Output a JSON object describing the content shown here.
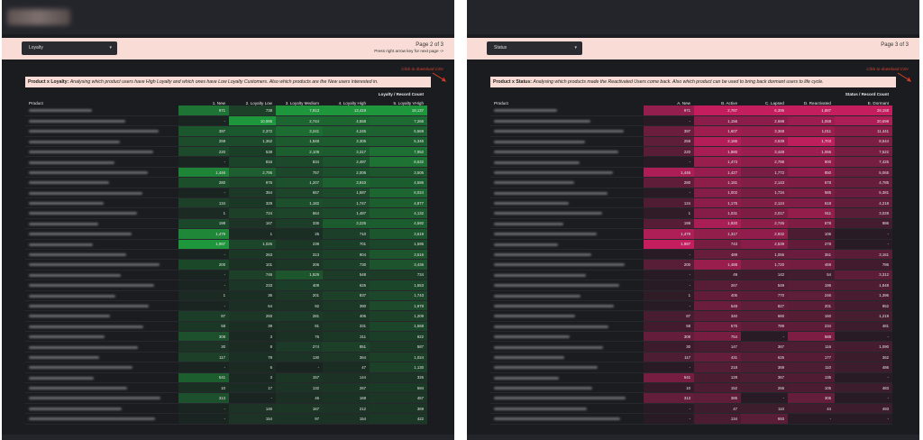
{
  "left": {
    "control_label": "Loyalty",
    "page": "Page 2 of 3",
    "hint": "Press right arrow key for next page ->",
    "csv_label": "Click to download CSV",
    "desc_title": "Product x Loyalty:",
    "desc_text": "Analysing which product users have High Loyalty and which ones have Low Loyalty Customers. Also which products are the New users interested in.",
    "super_header": "Loyalty / Record Count",
    "col0": "Product",
    "cols": [
      "1. New",
      "2. Loyalty Low",
      "3. Loyalty Medium",
      "4. Loyalty High",
      "5. Loyalty VHigh"
    ],
    "color": "#1f9e3e",
    "max": [
      1987,
      10995,
      7913,
      13419,
      18137
    ],
    "rows": [
      [
        "971",
        "738",
        "7,913",
        "13,419",
        "18,137"
      ],
      [
        "-",
        "10,995",
        "2,744",
        "4,558",
        "7,266"
      ],
      [
        "397",
        "2,372",
        "3,241",
        "4,245",
        "5,569"
      ],
      [
        "259",
        "1,362",
        "1,848",
        "3,306",
        "5,346"
      ],
      [
        "220",
        "538",
        "2,109",
        "3,317",
        "7,952"
      ],
      [
        "-",
        "816",
        "834",
        "2,497",
        "8,632"
      ],
      [
        "1,446",
        "2,795",
        "757",
        "2,006",
        "3,506"
      ],
      [
        "280",
        "976",
        "1,207",
        "3,910",
        "4,586"
      ],
      [
        "-",
        "354",
        "657",
        "1,587",
        "6,024"
      ],
      [
        "134",
        "329",
        "1,182",
        "1,747",
        "4,877"
      ],
      [
        "1",
        "724",
        "664",
        "1,487",
        "4,132"
      ],
      [
        "198",
        "167",
        "335",
        "3,225",
        "4,592"
      ],
      [
        "1,479",
        "1",
        "25",
        "710",
        "3,619"
      ],
      [
        "1,987",
        "1,026",
        "239",
        "701",
        "1,595"
      ],
      [
        "-",
        "263",
        "313",
        "904",
        "3,516"
      ],
      [
        "200",
        "101",
        "206",
        "730",
        "3,436"
      ],
      [
        "-",
        "746",
        "1,529",
        "548",
        "734"
      ],
      [
        "-",
        "233",
        "409",
        "625",
        "1,553"
      ],
      [
        "1",
        "36",
        "201",
        "837",
        "1,743"
      ],
      [
        "-",
        "64",
        "92",
        "390",
        "1,978"
      ],
      [
        "87",
        "293",
        "281",
        "406",
        "1,209"
      ],
      [
        "58",
        "39",
        "81",
        "331",
        "1,568"
      ],
      [
        "308",
        "3",
        "76",
        "311",
        "922"
      ],
      [
        "30",
        "8",
        "274",
        "851",
        "587"
      ],
      [
        "117",
        "78",
        "130",
        "364",
        "1,024"
      ],
      [
        "-",
        "6",
        "-",
        "47",
        "1,130"
      ],
      [
        "541",
        "3",
        "157",
        "144",
        "326"
      ],
      [
        "10",
        "17",
        "132",
        "267",
        "594"
      ],
      [
        "313",
        "-",
        "45",
        "168",
        "457"
      ],
      [
        "-",
        "146",
        "167",
        "212",
        "369"
      ],
      [
        "-",
        "154",
        "97",
        "154",
        "422"
      ]
    ]
  },
  "right": {
    "control_label": "Status",
    "page": "Page 3 of 3",
    "csv_label": "Click to download CSV",
    "desc_title": "Product x Status:",
    "desc_text": "Analysing which products made the Reactivated Users come back. Also which product can be used to bring back dormant users to life cycle.",
    "super_header": "Status / Record Count",
    "col0": "Product",
    "cols": [
      "A. New",
      "B. Active",
      "C. Lapsed",
      "D. Reactivated",
      "E. Dormant"
    ],
    "color": "#cf1f63",
    "max": [
      1987,
      2787,
      6395,
      1887,
      29158
    ],
    "rows": [
      [
        "971",
        "2,787",
        "6,395",
        "1,887",
        "29,158"
      ],
      [
        "-",
        "1,156",
        "2,698",
        "1,068",
        "20,699"
      ],
      [
        "397",
        "1,607",
        "3,368",
        "1,011",
        "11,441"
      ],
      [
        "259",
        "2,186",
        "3,639",
        "1,703",
        "8,644"
      ],
      [
        "220",
        "1,880",
        "3,448",
        "1,066",
        "7,522"
      ],
      [
        "-",
        "1,473",
        "2,788",
        "900",
        "7,425"
      ],
      [
        "1,446",
        "1,427",
        "1,772",
        "850",
        "5,065"
      ],
      [
        "280",
        "1,181",
        "2,143",
        "578",
        "4,785"
      ],
      [
        "-",
        "1,002",
        "1,734",
        "585",
        "5,381"
      ],
      [
        "134",
        "1,175",
        "2,124",
        "618",
        "4,218"
      ],
      [
        "1",
        "1,031",
        "2,017",
        "911",
        "3,028"
      ],
      [
        "198",
        "1,920",
        "2,745",
        "578",
        "986"
      ],
      [
        "1,479",
        "1,317",
        "2,932",
        "106",
        "-"
      ],
      [
        "1,987",
        "743",
        "2,539",
        "278",
        "-"
      ],
      [
        "-",
        "489",
        "1,055",
        "351",
        "3,161"
      ],
      [
        "200",
        "1,488",
        "1,720",
        "469",
        "786"
      ],
      [
        "-",
        "49",
        "142",
        "54",
        "3,312"
      ],
      [
        "-",
        "267",
        "549",
        "196",
        "1,848"
      ],
      [
        "1",
        "405",
        "770",
        "246",
        "1,396"
      ],
      [
        "-",
        "548",
        "827",
        "201",
        "952"
      ],
      [
        "87",
        "340",
        "660",
        "160",
        "1,219"
      ],
      [
        "58",
        "575",
        "789",
        "234",
        "481"
      ],
      [
        "308",
        "754",
        "-",
        "588",
        "-"
      ],
      [
        "30",
        "147",
        "367",
        "116",
        "1,090"
      ],
      [
        "117",
        "431",
        "625",
        "177",
        "362"
      ],
      [
        "-",
        "218",
        "369",
        "110",
        "486"
      ],
      [
        "541",
        "128",
        "367",
        "135",
        "-"
      ],
      [
        "10",
        "152",
        "265",
        "105",
        "483"
      ],
      [
        "313",
        "385",
        "-",
        "305",
        "-"
      ],
      [
        "-",
        "47",
        "110",
        "44",
        "493"
      ],
      [
        "-",
        "134",
        "693",
        "-",
        "-"
      ]
    ]
  }
}
